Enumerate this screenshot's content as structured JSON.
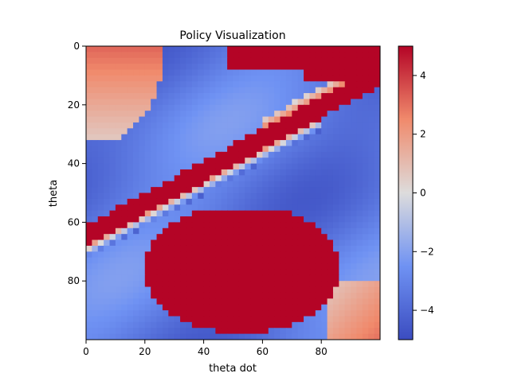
{
  "chart_data": {
    "type": "heatmap",
    "title": "Policy Visualization",
    "xlabel": "theta dot",
    "ylabel": "theta",
    "grid": false,
    "xlim": [
      0,
      100
    ],
    "ylim": [
      0,
      100
    ],
    "y_axis_inverted": true,
    "xticks": [
      0,
      20,
      40,
      60,
      80
    ],
    "yticks": [
      0,
      20,
      40,
      60,
      80
    ],
    "colormap": "coolwarm",
    "colorbar": {
      "vmin": -5,
      "vmax": 5,
      "ticks": [
        4,
        2,
        0,
        -2,
        -4
      ],
      "tick_labels": [
        "4",
        "2",
        "0",
        "−2",
        "−4"
      ]
    },
    "regions": [
      {
        "name": "top-left positive patch",
        "x": [
          0,
          25
        ],
        "y": [
          0,
          32
        ],
        "value_range": [
          0.5,
          3.5
        ]
      },
      {
        "name": "top-right saturated band",
        "x": [
          49,
          100
        ],
        "y": [
          0,
          12
        ],
        "value": 5
      },
      {
        "name": "upper-right to left diagonal positive band",
        "x": [
          0,
          100
        ],
        "y": [
          8,
          73
        ],
        "value": 5
      },
      {
        "name": "lower-center saturated blob",
        "x": [
          22,
          87
        ],
        "y": [
          55,
          96
        ],
        "value": 5
      },
      {
        "name": "bottom-right positive patch",
        "x": [
          82,
          100
        ],
        "y": [
          80,
          100
        ],
        "value_range": [
          0,
          2.5
        ]
      },
      {
        "name": "background",
        "value_range": [
          -5,
          -2
        ]
      }
    ]
  }
}
